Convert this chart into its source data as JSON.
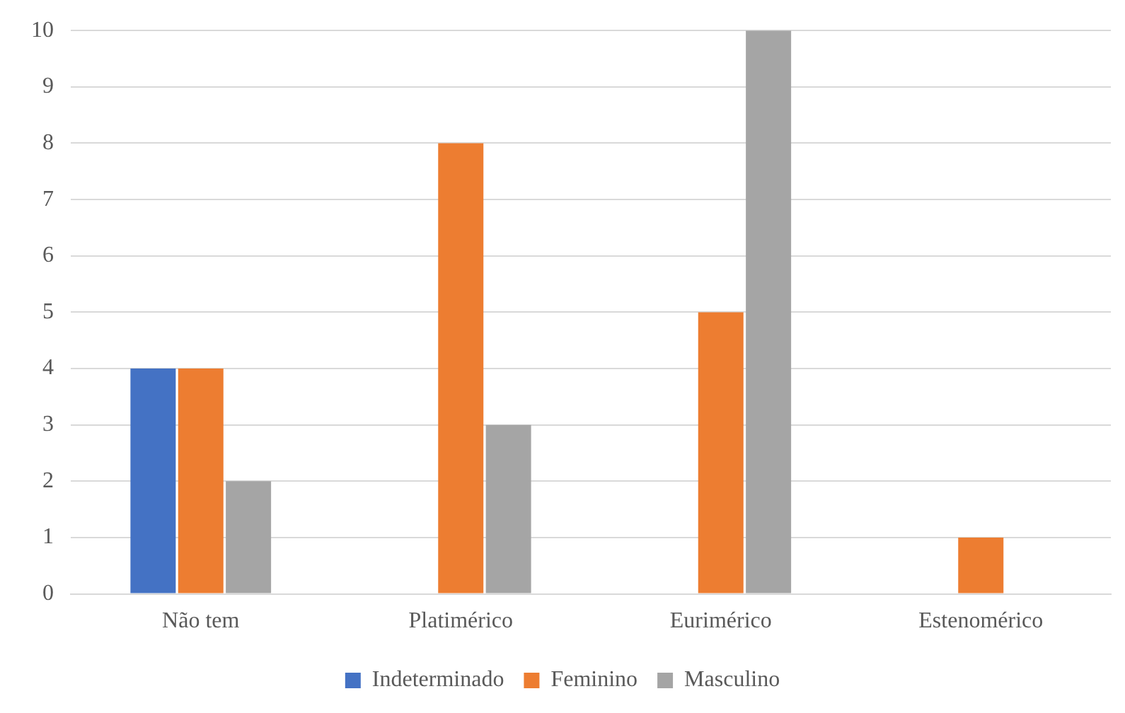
{
  "chart_data": {
    "type": "bar",
    "categories": [
      "Não tem",
      "Platimérico",
      "Eurimérico",
      "Estenomérico"
    ],
    "series": [
      {
        "name": "Indeterminado",
        "color": "#4472c4",
        "values": [
          4,
          0,
          0,
          0
        ]
      },
      {
        "name": "Feminino",
        "color": "#ed7d31",
        "values": [
          4,
          8,
          5,
          1
        ]
      },
      {
        "name": "Masculino",
        "color": "#a5a5a5",
        "values": [
          2,
          3,
          10,
          0
        ]
      }
    ],
    "ylim": [
      0,
      10
    ],
    "yticks": [
      0,
      1,
      2,
      3,
      4,
      5,
      6,
      7,
      8,
      9,
      10
    ],
    "grid": "y",
    "legend": "bottom"
  }
}
